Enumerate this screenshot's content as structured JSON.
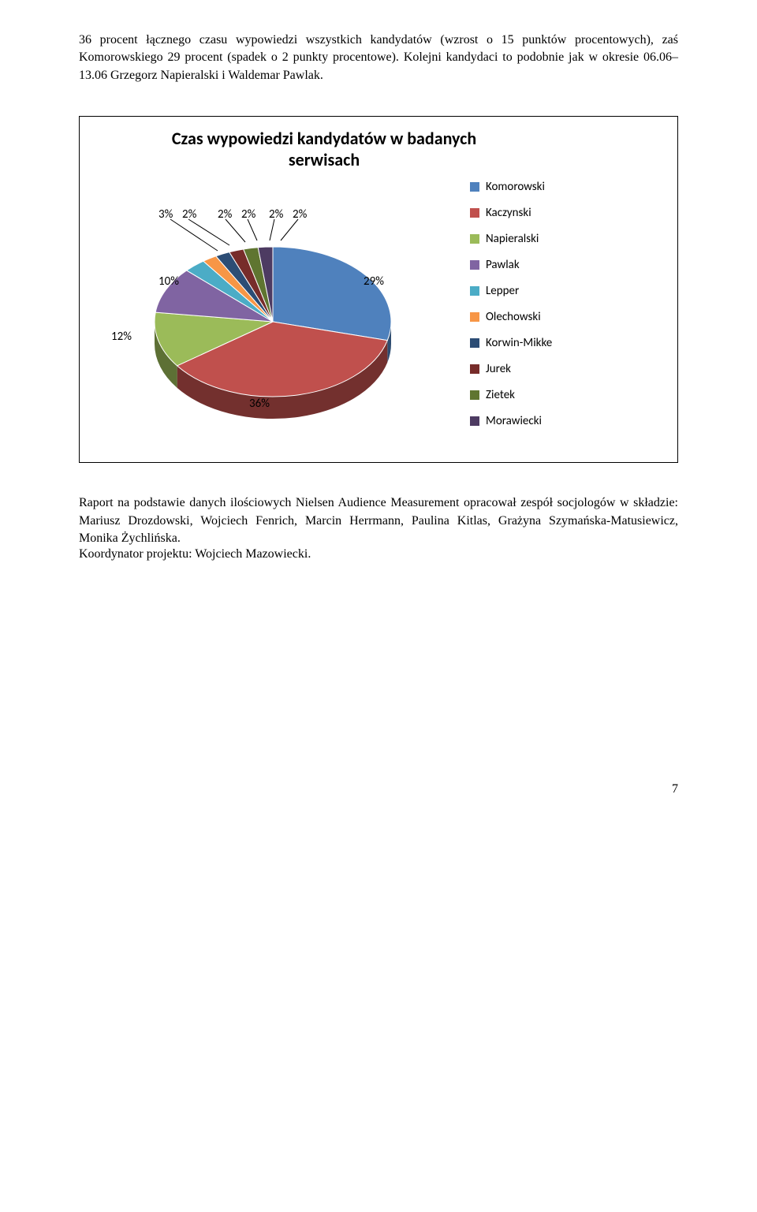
{
  "paragraph1": "36 procent łącznego czasu wypowiedzi wszystkich kandydatów (wzrost o 15 punktów procentowych), zaś Komorowskiego 29 procent (spadek o 2 punkty procentowe). Kolejni kandydaci to podobnie jak w okresie 06.06–13.06 Grzegorz Napieralski i Waldemar Pawlak.",
  "chart": {
    "title": "Czas wypowiedzi kandydatów w badanych serwisach",
    "type": "pie",
    "background_color": "#ffffff",
    "title_fontsize": 22,
    "label_fontsize": 15,
    "legend_fontsize": 15,
    "slices": [
      {
        "label": "Komorowski",
        "value": 29,
        "color": "#4f81bd",
        "display": "29%"
      },
      {
        "label": "Kaczynski",
        "value": 36,
        "color": "#c0504d",
        "display": "36%"
      },
      {
        "label": "Napieralski",
        "value": 12,
        "color": "#9bbb59",
        "display": "12%"
      },
      {
        "label": "Pawlak",
        "value": 10,
        "color": "#8064a2",
        "display": "10%"
      },
      {
        "label": "Lepper",
        "value": 3,
        "color": "#4bacc6",
        "display": "3%"
      },
      {
        "label": "Olechowski",
        "value": 2,
        "color": "#f79646",
        "display": "2%"
      },
      {
        "label": "Korwin-Mikke",
        "value": 2,
        "color": "#2c4d75",
        "display": "2%"
      },
      {
        "label": "Jurek",
        "value": 2,
        "color": "#772c2a",
        "display": "2%"
      },
      {
        "label": "Zietek",
        "value": 2,
        "color": "#5f7530",
        "display": "2%"
      },
      {
        "label": "Morawiecki",
        "value": 2,
        "color": "#4d3b62",
        "display": "2%"
      }
    ],
    "pie_labels": {
      "p29": "29%",
      "p36": "36%",
      "p12": "12%",
      "p10": "10%",
      "p3": "3%",
      "p2a": "2%",
      "p2b": "2%",
      "p2c": "2%",
      "p2d": "2%",
      "p2e": "2%"
    }
  },
  "paragraph2": "Raport na podstawie danych ilościowych Nielsen Audience Measurement opracował zespół socjologów w składzie: Mariusz Drozdowski, Wojciech Fenrich, Marcin Herrmann, Paulina Kitlas, Grażyna Szymańska-Matusiewicz, Monika Żychlińska.",
  "paragraph3": "Koordynator projektu: Wojciech Mazowiecki.",
  "page_number": "7"
}
